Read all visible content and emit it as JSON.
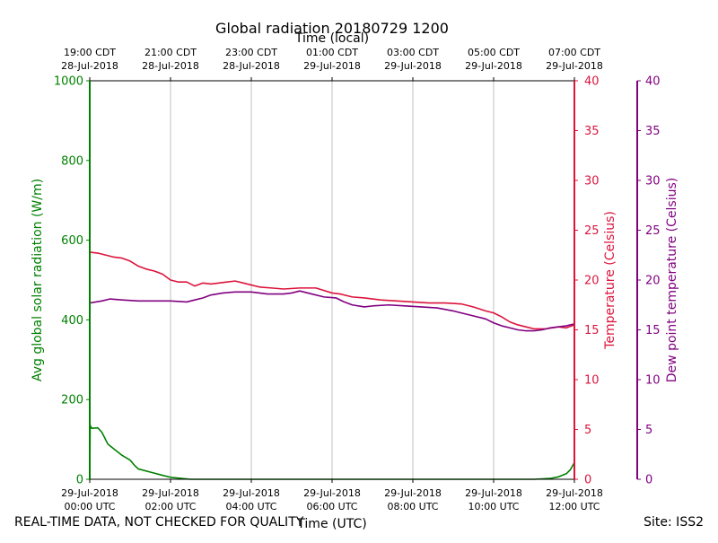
{
  "chart_data": {
    "type": "line",
    "title": "Global radiation 20180729 1200",
    "xlabel_top": "Time (local)",
    "xlabel_bottom": "Time (UTC)",
    "xlim_hours": [
      0,
      12
    ],
    "x_ticks_bottom": [
      {
        "hour": 0,
        "date": "29-Jul-2018",
        "time": "00:00 UTC"
      },
      {
        "hour": 2,
        "date": "29-Jul-2018",
        "time": "02:00 UTC"
      },
      {
        "hour": 4,
        "date": "29-Jul-2018",
        "time": "04:00 UTC"
      },
      {
        "hour": 6,
        "date": "29-Jul-2018",
        "time": "06:00 UTC"
      },
      {
        "hour": 8,
        "date": "29-Jul-2018",
        "time": "08:00 UTC"
      },
      {
        "hour": 10,
        "date": "29-Jul-2018",
        "time": "10:00 UTC"
      },
      {
        "hour": 12,
        "date": "29-Jul-2018",
        "time": "12:00 UTC"
      }
    ],
    "x_ticks_top": [
      {
        "hour": 0,
        "time": "19:00 CDT",
        "date": "28-Jul-2018"
      },
      {
        "hour": 2,
        "time": "21:00 CDT",
        "date": "28-Jul-2018"
      },
      {
        "hour": 4,
        "time": "23:00 CDT",
        "date": "28-Jul-2018"
      },
      {
        "hour": 6,
        "time": "01:00 CDT",
        "date": "29-Jul-2018"
      },
      {
        "hour": 8,
        "time": "03:00 CDT",
        "date": "29-Jul-2018"
      },
      {
        "hour": 10,
        "time": "05:00 CDT",
        "date": "29-Jul-2018"
      },
      {
        "hour": 12,
        "time": "07:00 CDT",
        "date": "29-Jul-2018"
      }
    ],
    "grid_vertical": true,
    "axes": {
      "radiation": {
        "label": "Avg global solar radiation (W/m)",
        "ylim": [
          0,
          1000
        ],
        "ticks": [
          0,
          200,
          400,
          600,
          800,
          1000
        ],
        "color": "#008000"
      },
      "temperature": {
        "label": "Temperature (Celsius)",
        "ylim": [
          0,
          40
        ],
        "ticks": [
          0,
          5,
          10,
          15,
          20,
          25,
          30,
          35,
          40
        ],
        "color": "#dc143c"
      },
      "dewpoint": {
        "label": "Dew point temperature (Celsius)",
        "ylim": [
          0,
          40
        ],
        "ticks": [
          0,
          5,
          10,
          15,
          20,
          25,
          30,
          35,
          40
        ],
        "color": "#800080"
      }
    },
    "series": [
      {
        "axis": "radiation",
        "color": "#008000",
        "points": [
          [
            0,
            0
          ],
          [
            0.01,
            135
          ],
          [
            0.05,
            128
          ],
          [
            0.2,
            129
          ],
          [
            0.3,
            118
          ],
          [
            0.45,
            88
          ],
          [
            0.6,
            76
          ],
          [
            0.8,
            60
          ],
          [
            1.0,
            48
          ],
          [
            1.1,
            36
          ],
          [
            1.2,
            26
          ],
          [
            1.5,
            18
          ],
          [
            1.8,
            10
          ],
          [
            2.0,
            5
          ],
          [
            2.3,
            2
          ],
          [
            2.5,
            0
          ],
          [
            4,
            0
          ],
          [
            6,
            0
          ],
          [
            8,
            0
          ],
          [
            10,
            0
          ],
          [
            11.0,
            0
          ],
          [
            11.4,
            2
          ],
          [
            11.6,
            6
          ],
          [
            11.8,
            14
          ],
          [
            11.9,
            24
          ],
          [
            12.0,
            42
          ]
        ]
      },
      {
        "axis": "temperature",
        "color": "#dc143c",
        "points": [
          [
            0,
            22.8
          ],
          [
            0.2,
            22.7
          ],
          [
            0.4,
            22.5
          ],
          [
            0.6,
            22.3
          ],
          [
            0.8,
            22.2
          ],
          [
            1.0,
            21.9
          ],
          [
            1.2,
            21.4
          ],
          [
            1.4,
            21.1
          ],
          [
            1.6,
            20.9
          ],
          [
            1.8,
            20.6
          ],
          [
            2.0,
            20.0
          ],
          [
            2.2,
            19.8
          ],
          [
            2.4,
            19.8
          ],
          [
            2.6,
            19.4
          ],
          [
            2.8,
            19.7
          ],
          [
            3.0,
            19.6
          ],
          [
            3.2,
            19.7
          ],
          [
            3.4,
            19.8
          ],
          [
            3.6,
            19.9
          ],
          [
            3.8,
            19.7
          ],
          [
            4.0,
            19.5
          ],
          [
            4.2,
            19.3
          ],
          [
            4.5,
            19.2
          ],
          [
            4.8,
            19.1
          ],
          [
            5.2,
            19.2
          ],
          [
            5.6,
            19.2
          ],
          [
            6.0,
            18.7
          ],
          [
            6.2,
            18.6
          ],
          [
            6.5,
            18.3
          ],
          [
            6.8,
            18.2
          ],
          [
            7.2,
            18.0
          ],
          [
            7.6,
            17.9
          ],
          [
            8.0,
            17.8
          ],
          [
            8.4,
            17.7
          ],
          [
            8.8,
            17.7
          ],
          [
            9.2,
            17.6
          ],
          [
            9.5,
            17.3
          ],
          [
            9.8,
            16.9
          ],
          [
            10.0,
            16.7
          ],
          [
            10.2,
            16.3
          ],
          [
            10.4,
            15.8
          ],
          [
            10.6,
            15.5
          ],
          [
            10.8,
            15.3
          ],
          [
            11.0,
            15.1
          ],
          [
            11.3,
            15.1
          ],
          [
            11.6,
            15.3
          ],
          [
            11.8,
            15.2
          ],
          [
            12.0,
            15.5
          ]
        ]
      },
      {
        "axis": "dewpoint",
        "color": "#800080",
        "points": [
          [
            0,
            17.7
          ],
          [
            0.3,
            17.9
          ],
          [
            0.5,
            18.1
          ],
          [
            0.8,
            18.0
          ],
          [
            1.2,
            17.9
          ],
          [
            1.6,
            17.9
          ],
          [
            2.0,
            17.9
          ],
          [
            2.4,
            17.8
          ],
          [
            2.6,
            18.0
          ],
          [
            2.8,
            18.2
          ],
          [
            3.0,
            18.5
          ],
          [
            3.3,
            18.7
          ],
          [
            3.6,
            18.8
          ],
          [
            4.0,
            18.8
          ],
          [
            4.4,
            18.6
          ],
          [
            4.8,
            18.6
          ],
          [
            5.0,
            18.7
          ],
          [
            5.2,
            18.9
          ],
          [
            5.5,
            18.6
          ],
          [
            5.8,
            18.3
          ],
          [
            6.1,
            18.2
          ],
          [
            6.3,
            17.8
          ],
          [
            6.5,
            17.5
          ],
          [
            6.8,
            17.3
          ],
          [
            7.0,
            17.4
          ],
          [
            7.4,
            17.5
          ],
          [
            7.8,
            17.4
          ],
          [
            8.2,
            17.3
          ],
          [
            8.6,
            17.2
          ],
          [
            9.0,
            16.9
          ],
          [
            9.4,
            16.5
          ],
          [
            9.8,
            16.1
          ],
          [
            10.0,
            15.7
          ],
          [
            10.2,
            15.4
          ],
          [
            10.4,
            15.2
          ],
          [
            10.6,
            15.0
          ],
          [
            10.8,
            14.9
          ],
          [
            11.0,
            14.9
          ],
          [
            11.2,
            15.0
          ],
          [
            11.4,
            15.2
          ],
          [
            11.6,
            15.3
          ],
          [
            11.8,
            15.4
          ],
          [
            12.0,
            15.6
          ]
        ]
      }
    ]
  },
  "footer": {
    "left": "REAL-TIME DATA, NOT CHECKED FOR QUALITY",
    "right": "Site: ISS2"
  }
}
